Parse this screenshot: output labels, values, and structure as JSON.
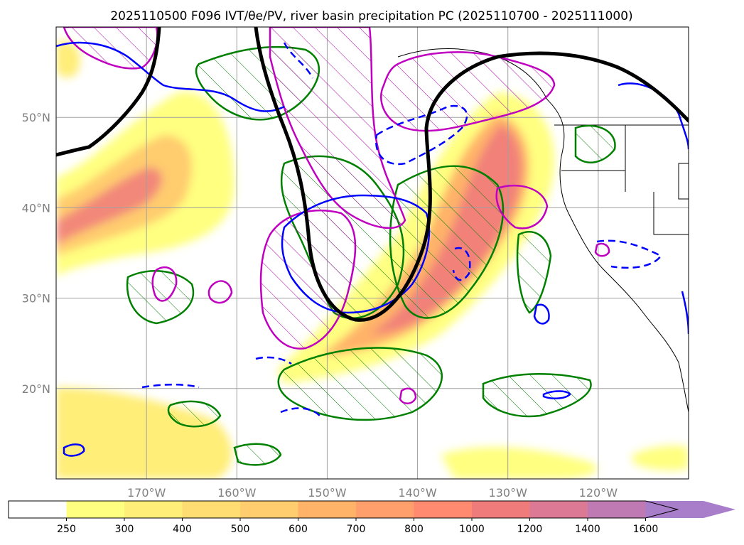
{
  "title": "2025110500 F096 IVT/θe/PV, river basin precipitation PC (2025110700 - 2025111000)",
  "chart_data": {
    "type": "map",
    "axes": {
      "lon_range_deg": [
        -180,
        -110
      ],
      "lat_range_deg": [
        10,
        60
      ],
      "lat_ticks": [
        {
          "value": 50,
          "label": "50°N"
        },
        {
          "value": 40,
          "label": "40°N"
        },
        {
          "value": 30,
          "label": "30°N"
        },
        {
          "value": 20,
          "label": "20°N"
        }
      ],
      "lon_ticks": [
        {
          "value": -170,
          "label": "170°W"
        },
        {
          "value": -160,
          "label": "160°W"
        },
        {
          "value": -150,
          "label": "150°W"
        },
        {
          "value": -140,
          "label": "140°W"
        },
        {
          "value": -130,
          "label": "130°W"
        },
        {
          "value": -120,
          "label": "120°W"
        }
      ],
      "grid": true
    },
    "colorbar": {
      "variable": "IVT",
      "extend": "max",
      "levels": [
        {
          "label": "250",
          "color": "#ffff80"
        },
        {
          "label": "300",
          "color": "#ffee78"
        },
        {
          "label": "400",
          "color": "#ffdd73"
        },
        {
          "label": "500",
          "color": "#ffcc6e"
        },
        {
          "label": "600",
          "color": "#ffb369"
        },
        {
          "label": "700",
          "color": "#ff9f6c"
        },
        {
          "label": "800",
          "color": "#ff8a70"
        },
        {
          "label": "1000",
          "color": "#f07b7b"
        },
        {
          "label": "1200",
          "color": "#dc7a96"
        },
        {
          "label": "1400",
          "color": "#c07ab3"
        },
        {
          "label": "1600",
          "color": "#a87dca"
        }
      ],
      "below_color": "#ffffff"
    },
    "contours": [
      {
        "name": "PV / trough axis",
        "color": "#000000",
        "style": "solid, thick"
      },
      {
        "name": "θe",
        "color": "#0000ff",
        "style": "solid and dashed"
      },
      {
        "name": "precipitation PC",
        "color": "#008000",
        "style": "solid with hatching"
      },
      {
        "name": "precipitation PC (alt)",
        "color": "#c000c0",
        "style": "solid with hatching"
      }
    ]
  }
}
